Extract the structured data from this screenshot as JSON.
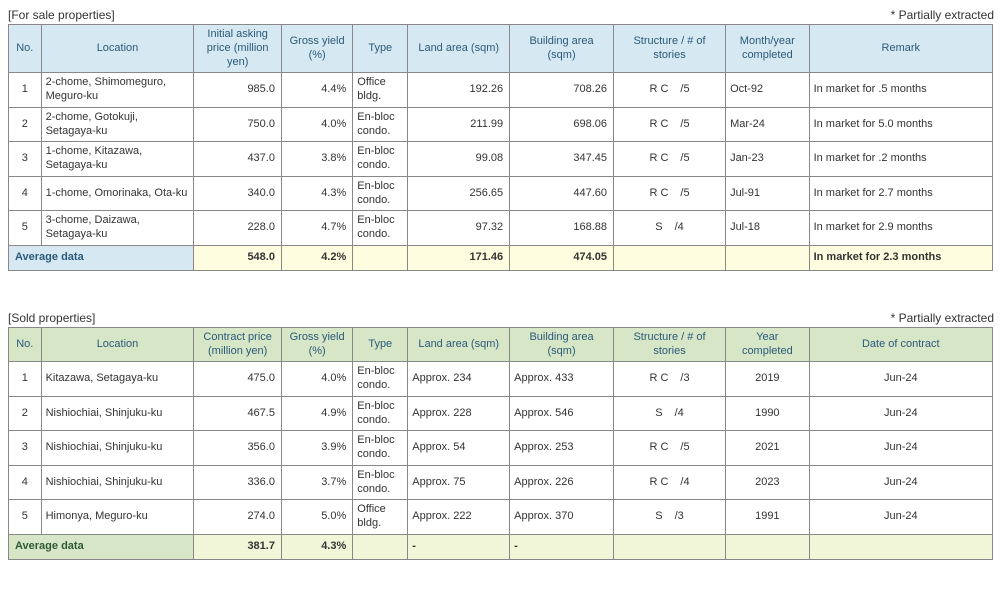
{
  "for_sale": {
    "title": "[For sale properties]",
    "note": "* Partially extracted",
    "headers": {
      "no": "No.",
      "location": "Location",
      "price": "Initial asking price (million yen)",
      "yield": "Gross yield (%)",
      "type": "Type",
      "land": "Land area (sqm)",
      "bldg": "Building area (sqm)",
      "struct": "Structure / # of stories",
      "year": "Month/year completed",
      "remark": "Remark"
    },
    "rows": [
      {
        "no": "1",
        "location": "2-chome, Shimomeguro, Meguro-ku",
        "price": "985.0",
        "yield": "4.4%",
        "type": "Office bldg.",
        "land": "192.26",
        "bldg": "708.26",
        "struct_a": "R C",
        "struct_b": "/5",
        "year": "Oct-92",
        "remark": "In market for .5 months"
      },
      {
        "no": "2",
        "location": "2-chome, Gotokuji, Setagaya-ku",
        "price": "750.0",
        "yield": "4.0%",
        "type": "En-bloc condo.",
        "land": "211.99",
        "bldg": "698.06",
        "struct_a": "R C",
        "struct_b": "/5",
        "year": "Mar-24",
        "remark": "In market for 5.0 months"
      },
      {
        "no": "3",
        "location": "1-chome, Kitazawa, Setagaya-ku",
        "price": "437.0",
        "yield": "3.8%",
        "type": "En-bloc condo.",
        "land": "99.08",
        "bldg": "347.45",
        "struct_a": "R C",
        "struct_b": "/5",
        "year": "Jan-23",
        "remark": "In market for .2 months"
      },
      {
        "no": "4",
        "location": "1-chome, Omorinaka, Ota-ku",
        "price": "340.0",
        "yield": "4.3%",
        "type": "En-bloc condo.",
        "land": "256.65",
        "bldg": "447.60",
        "struct_a": "R C",
        "struct_b": "/5",
        "year": "Jul-91",
        "remark": "In market for 2.7 months"
      },
      {
        "no": "5",
        "location": "3-chome, Daizawa, Setagaya-ku",
        "price": "228.0",
        "yield": "4.7%",
        "type": "En-bloc condo.",
        "land": "97.32",
        "bldg": "168.88",
        "struct_a": "S",
        "struct_b": "/4",
        "year": "Jul-18",
        "remark": "In market for 2.9 months"
      }
    ],
    "avg": {
      "label": "Average data",
      "price": "548.0",
      "yield": "4.2%",
      "type": "",
      "land": "171.46",
      "bldg": "474.05",
      "struct": "",
      "year": "",
      "remark": "In market for 2.3 months"
    }
  },
  "sold": {
    "title": "[Sold properties]",
    "note": "* Partially extracted",
    "headers": {
      "no": "No.",
      "location": "Location",
      "price": "Contract price (million yen)",
      "yield": "Gross yield (%)",
      "type": "Type",
      "land": "Land area (sqm)",
      "bldg": "Building area (sqm)",
      "struct": "Structure / # of stories",
      "year": "Year completed",
      "remark": "Date of contract"
    },
    "rows": [
      {
        "no": "1",
        "location": "Kitazawa, Setagaya-ku",
        "price": "475.0",
        "yield": "4.0%",
        "type": "En-bloc condo.",
        "land": "Approx. 234",
        "bldg": "Approx. 433",
        "struct_a": "R C",
        "struct_b": "/3",
        "year": "2019",
        "remark": "Jun-24"
      },
      {
        "no": "2",
        "location": "Nishiochiai, Shinjuku-ku",
        "price": "467.5",
        "yield": "4.9%",
        "type": "En-bloc condo.",
        "land": "Approx. 228",
        "bldg": "Approx. 546",
        "struct_a": "S",
        "struct_b": "/4",
        "year": "1990",
        "remark": "Jun-24"
      },
      {
        "no": "3",
        "location": "Nishiochiai, Shinjuku-ku",
        "price": "356.0",
        "yield": "3.9%",
        "type": "En-bloc condo.",
        "land": "Approx. 54",
        "bldg": "Approx. 253",
        "struct_a": "R C",
        "struct_b": "/5",
        "year": "2021",
        "remark": "Jun-24"
      },
      {
        "no": "4",
        "location": "Nishiochiai, Shinjuku-ku",
        "price": "336.0",
        "yield": "3.7%",
        "type": "En-bloc condo.",
        "land": "Approx. 75",
        "bldg": "Approx. 226",
        "struct_a": "R C",
        "struct_b": "/4",
        "year": "2023",
        "remark": "Jun-24"
      },
      {
        "no": "5",
        "location": "Himonya, Meguro-ku",
        "price": "274.0",
        "yield": "5.0%",
        "type": "Office bldg.",
        "land": "Approx. 222",
        "bldg": "Approx. 370",
        "struct_a": "S",
        "struct_b": "/3",
        "year": "1991",
        "remark": "Jun-24"
      }
    ],
    "avg": {
      "label": "Average data",
      "price": "381.7",
      "yield": "4.3%",
      "type": "",
      "land": "-",
      "bldg": "-",
      "struct": "",
      "year": "",
      "remark": ""
    }
  },
  "layout": {
    "sold_land_align": "left",
    "sold_bldg_align": "left",
    "sold_year_align": "center",
    "sold_remark_align": "center"
  }
}
